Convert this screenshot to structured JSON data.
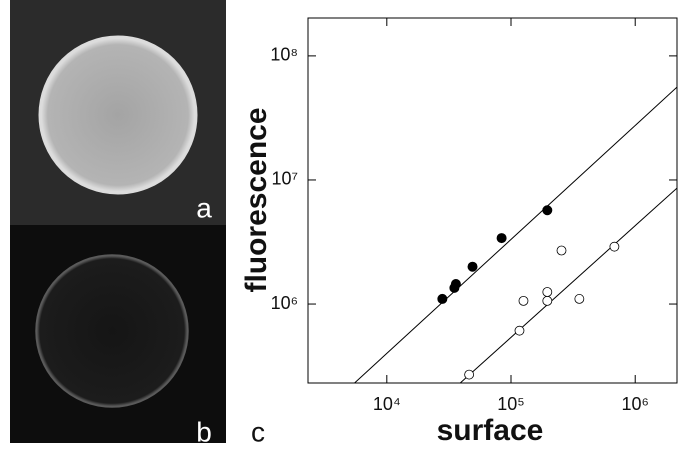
{
  "panels": [
    {
      "label": "a"
    },
    {
      "label": "b"
    }
  ],
  "chart_data": {
    "type": "scatter",
    "panel_label": "c",
    "xlabel": "surface",
    "ylabel": "fluorescence",
    "xscale": "log",
    "yscale": "log",
    "xlim": [
      2320,
      2170000
    ],
    "ylim": [
      231000,
      202000000
    ],
    "xticks": [
      {
        "value": 10000,
        "label": "10⁴"
      },
      {
        "value": 100000,
        "label": "10⁵"
      },
      {
        "value": 1000000,
        "label": "10⁶"
      }
    ],
    "yticks": [
      {
        "value": 1000000,
        "label": "10⁶"
      },
      {
        "value": 10000000,
        "label": "10⁷"
      },
      {
        "value": 100000000,
        "label": "10⁸"
      }
    ],
    "series": [
      {
        "marker": "filled",
        "color": "#000000",
        "x": [
          28000,
          35000,
          36000,
          49000,
          84000,
          196000
        ],
        "values": [
          1100000,
          1350000,
          1450000,
          2000000,
          3400000,
          5700000
        ]
      },
      {
        "marker": "open",
        "color": "#000000",
        "x": [
          46000,
          117000,
          196000,
          196000,
          255000,
          355000,
          126000,
          680000
        ],
        "values": [
          270000,
          610000,
          1060000,
          1250000,
          2700000,
          1100000,
          1060000,
          2900000
        ]
      }
    ],
    "fit_lines": [
      {
        "color": "#000000",
        "x": [
          5500,
          2170000
        ],
        "y": [
          231000,
          56000000
        ]
      },
      {
        "color": "#000000",
        "x": [
          39000,
          2170000
        ],
        "y": [
          231000,
          8600000
        ]
      }
    ]
  }
}
